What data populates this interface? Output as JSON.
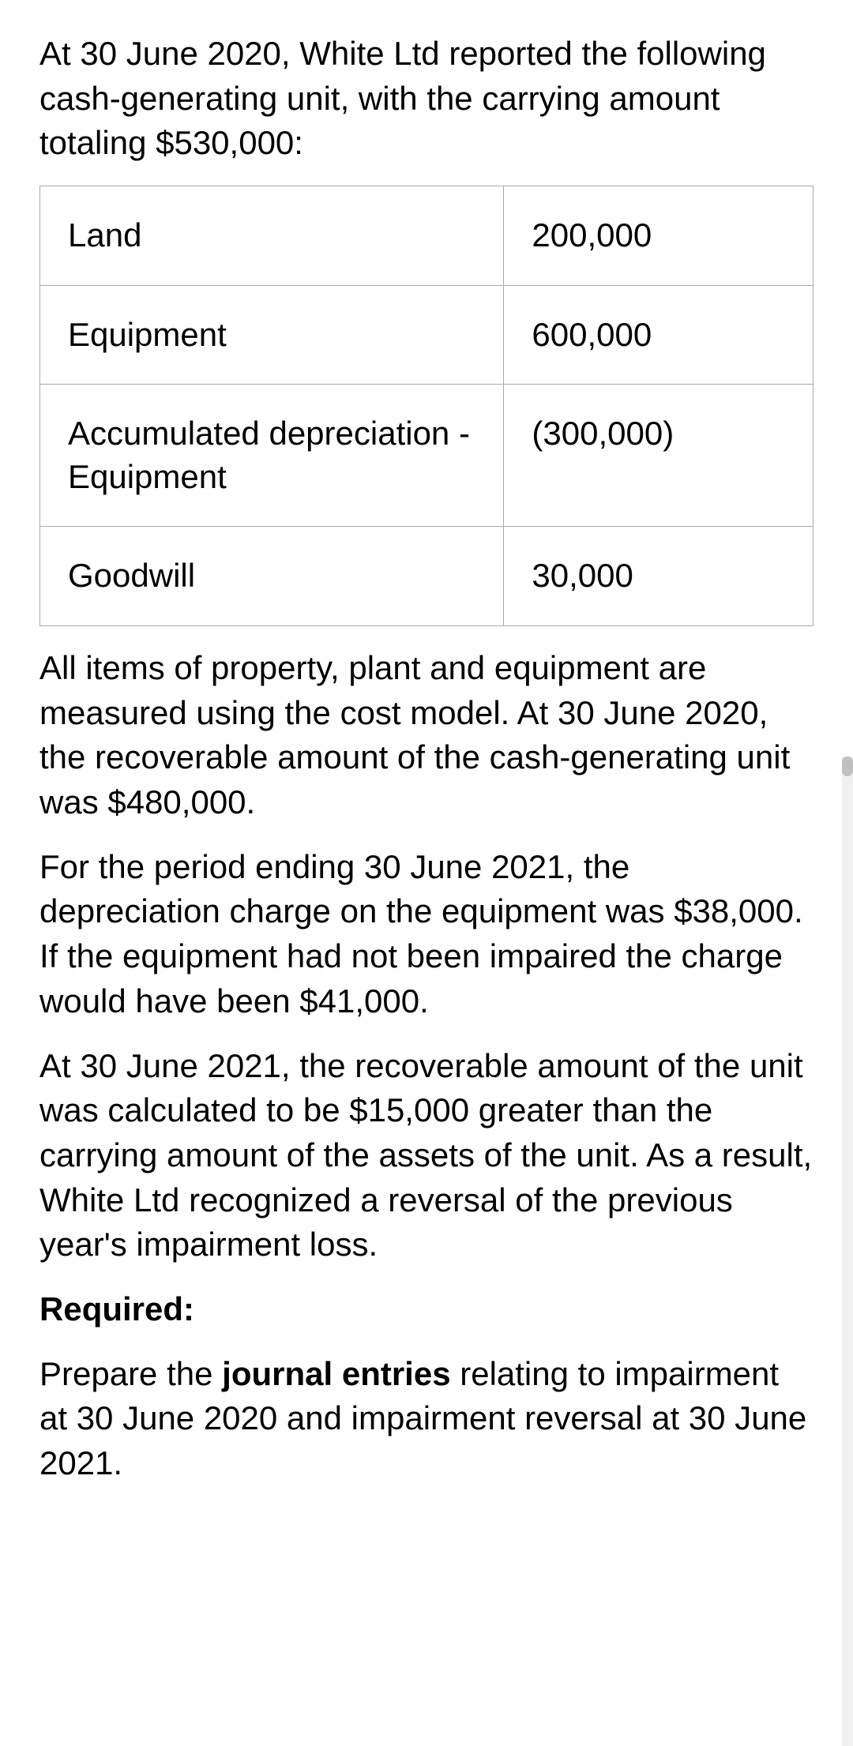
{
  "intro": "At 30 June 2020, White Ltd reported the following cash-generating unit, with the carrying amount totaling $530,000:",
  "table": {
    "rows": [
      {
        "label": "Land",
        "value": "200,000"
      },
      {
        "label": "Equipment",
        "value": "600,000"
      },
      {
        "label": "Accumulated depreciation - Equipment",
        "value": "(300,000)"
      },
      {
        "label": "Goodwill",
        "value": "30,000"
      }
    ]
  },
  "para2": "All items of property, plant and equipment are measured using the cost model. At 30 June 2020, the recoverable amount of the cash-generating unit was $480,000.",
  "para3": "For the period ending 30 June 2021, the depreciation charge on the equipment was $38,000. If the equipment had not been impaired the charge would have been $41,000.",
  "para4": "At 30 June 2021, the recoverable amount of the unit was calculated to be $15,000 greater than the carrying amount of the assets of the unit. As a result, White Ltd recognized a reversal of the previous year's impairment loss.",
  "required_label": "Required:",
  "task_prefix": "Prepare the ",
  "task_bold": "journal entries",
  "task_suffix": " relating to impairment at 30 June 2020 and impairment reversal at 30 June 2021.",
  "colors": {
    "text": "#000000",
    "background": "#ffffff",
    "border": "#aaaaaa",
    "scrollbar_track": "#f0f0f0",
    "scrollbar_thumb": "#c0c0c0"
  },
  "typography": {
    "body_fontsize": 42,
    "line_height": 1.35,
    "font_weight_normal": 400,
    "font_weight_bold": 700
  }
}
